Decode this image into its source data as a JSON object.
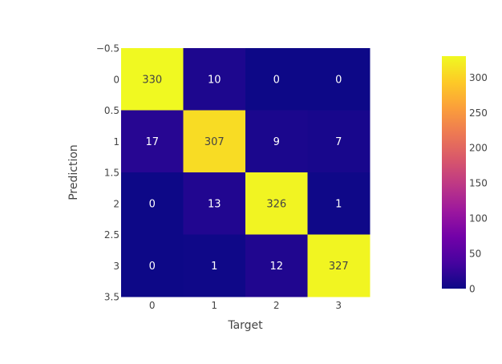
{
  "chart_data": {
    "type": "heatmap",
    "x": [
      "0",
      "1",
      "2",
      "3"
    ],
    "y": [
      "0",
      "1",
      "2",
      "3"
    ],
    "z": [
      [
        330,
        10,
        0,
        0
      ],
      [
        17,
        307,
        9,
        7
      ],
      [
        0,
        13,
        326,
        1
      ],
      [
        0,
        1,
        12,
        327
      ]
    ],
    "xlabel": "Target",
    "ylabel": "Prediction",
    "x_tick_labels": [
      "0",
      "1",
      "2",
      "3"
    ],
    "y_tick_labels": [
      "−0.5",
      "0",
      "0.5",
      "1",
      "1.5",
      "2",
      "2.5",
      "3",
      "3.5"
    ],
    "zrange": [
      0,
      330
    ],
    "colorbar": {
      "tick_values": [
        0,
        50,
        100,
        150,
        200,
        250,
        300
      ],
      "tick_labels": [
        "0",
        "50",
        "100",
        "150",
        "200",
        "250",
        "300"
      ],
      "placement": "right"
    },
    "colorscale_name": "Plasma",
    "colorscale": [
      "#0d0887",
      "#46039f",
      "#7201a8",
      "#9c179e",
      "#bd3786",
      "#d8576b",
      "#ed7953",
      "#fb9f3a",
      "#fdca26",
      "#f0f921"
    ],
    "grid": false
  }
}
